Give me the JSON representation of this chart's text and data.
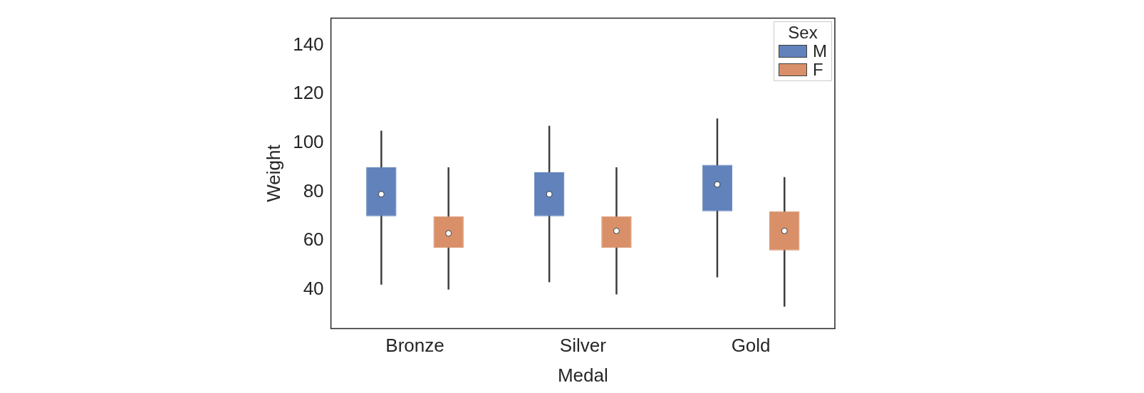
{
  "chart_data": {
    "type": "box",
    "xlabel": "Medal",
    "ylabel": "Weight",
    "legend_title": "Sex",
    "legend": "top right",
    "categories": [
      "Bronze",
      "Silver",
      "Gold"
    ],
    "ylim": [
      24,
      151
    ],
    "yticks": [
      40,
      60,
      80,
      100,
      120,
      140
    ],
    "series": [
      {
        "name": "M",
        "color": "#6182bb",
        "boxes": [
          {
            "low": 42,
            "q1": 70,
            "median": 79,
            "q3": 90,
            "high": 105
          },
          {
            "low": 43,
            "q1": 70,
            "median": 79,
            "q3": 88,
            "high": 107
          },
          {
            "low": 45,
            "q1": 72,
            "median": 83,
            "q3": 91,
            "high": 110
          }
        ]
      },
      {
        "name": "F",
        "color": "#d99068",
        "boxes": [
          {
            "low": 40,
            "q1": 57,
            "median": 63,
            "q3": 70,
            "high": 90
          },
          {
            "low": 38,
            "q1": 57,
            "median": 64,
            "q3": 70,
            "high": 90
          },
          {
            "low": 33,
            "q1": 56,
            "median": 64,
            "q3": 72,
            "high": 86
          }
        ]
      }
    ]
  }
}
